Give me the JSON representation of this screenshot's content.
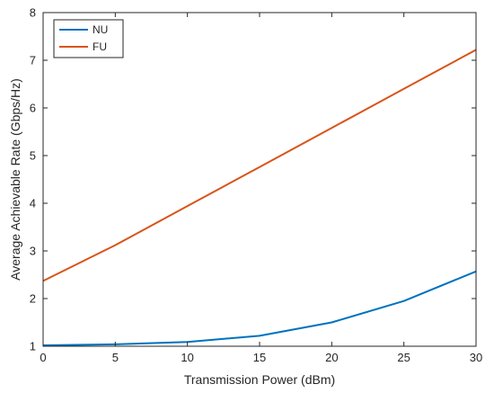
{
  "chart_data": {
    "type": "line",
    "xlabel": "Transmission Power (dBm)",
    "ylabel": "Average Achievable Rate (Gbps/Hz)",
    "xlim": [
      0,
      30
    ],
    "ylim": [
      1,
      8
    ],
    "xticks": [
      0,
      5,
      10,
      15,
      20,
      25,
      30
    ],
    "yticks": [
      1,
      2,
      3,
      4,
      5,
      6,
      7,
      8
    ],
    "grid": false,
    "legend_position": "top-left",
    "x": [
      0,
      5,
      10,
      15,
      20,
      25,
      30
    ],
    "series": [
      {
        "name": "NU",
        "color": "#0072BD",
        "values": [
          1.02,
          1.04,
          1.09,
          1.22,
          1.5,
          1.95,
          2.57
        ]
      },
      {
        "name": "FU",
        "color": "#D95319",
        "values": [
          2.37,
          3.12,
          3.94,
          4.76,
          5.58,
          6.4,
          7.22
        ]
      }
    ]
  }
}
